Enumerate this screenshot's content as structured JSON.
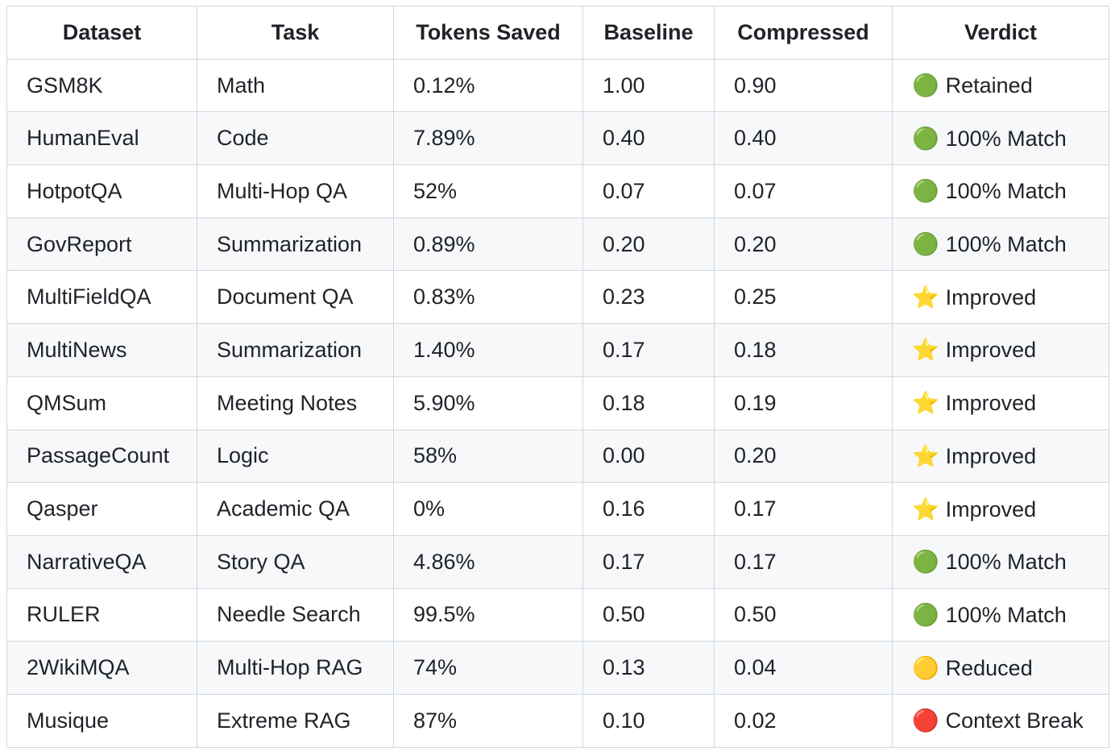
{
  "table": {
    "headers": [
      "Dataset",
      "Task",
      "Tokens Saved",
      "Baseline",
      "Compressed",
      "Verdict"
    ],
    "rows": [
      [
        "GSM8K",
        "Math",
        "0.12%",
        "1.00",
        "0.90",
        {
          "icon": "🟢",
          "text": "Retained"
        }
      ],
      [
        "HumanEval",
        "Code",
        "7.89%",
        "0.40",
        "0.40",
        {
          "icon": "🟢",
          "text": "100% Match"
        }
      ],
      [
        "HotpotQA",
        "Multi-Hop QA",
        "52%",
        "0.07",
        "0.07",
        {
          "icon": "🟢",
          "text": "100% Match"
        }
      ],
      [
        "GovReport",
        "Summarization",
        "0.89%",
        "0.20",
        "0.20",
        {
          "icon": "🟢",
          "text": "100% Match"
        }
      ],
      [
        "MultiFieldQA",
        "Document QA",
        "0.83%",
        "0.23",
        "0.25",
        {
          "icon": "⭐",
          "text": "Improved"
        }
      ],
      [
        "MultiNews",
        "Summarization",
        "1.40%",
        "0.17",
        "0.18",
        {
          "icon": "⭐",
          "text": "Improved"
        }
      ],
      [
        "QMSum",
        "Meeting Notes",
        "5.90%",
        "0.18",
        "0.19",
        {
          "icon": "⭐",
          "text": "Improved"
        }
      ],
      [
        "PassageCount",
        "Logic",
        "58%",
        "0.00",
        "0.20",
        {
          "icon": "⭐",
          "text": "Improved"
        }
      ],
      [
        "Qasper",
        "Academic QA",
        "0%",
        "0.16",
        "0.17",
        {
          "icon": "⭐",
          "text": "Improved"
        }
      ],
      [
        "NarrativeQA",
        "Story QA",
        "4.86%",
        "0.17",
        "0.17",
        {
          "icon": "🟢",
          "text": "100% Match"
        }
      ],
      [
        "RULER",
        "Needle Search",
        "99.5%",
        "0.50",
        "0.50",
        {
          "icon": "🟢",
          "text": "100% Match"
        }
      ],
      [
        "2WikiMQA",
        "Multi-Hop RAG",
        "74%",
        "0.13",
        "0.04",
        {
          "icon": "🟡",
          "text": "Reduced"
        }
      ],
      [
        "Musique",
        "Extreme RAG",
        "87%",
        "0.10",
        "0.02",
        {
          "icon": "🔴",
          "text": "Context Break"
        }
      ]
    ]
  }
}
